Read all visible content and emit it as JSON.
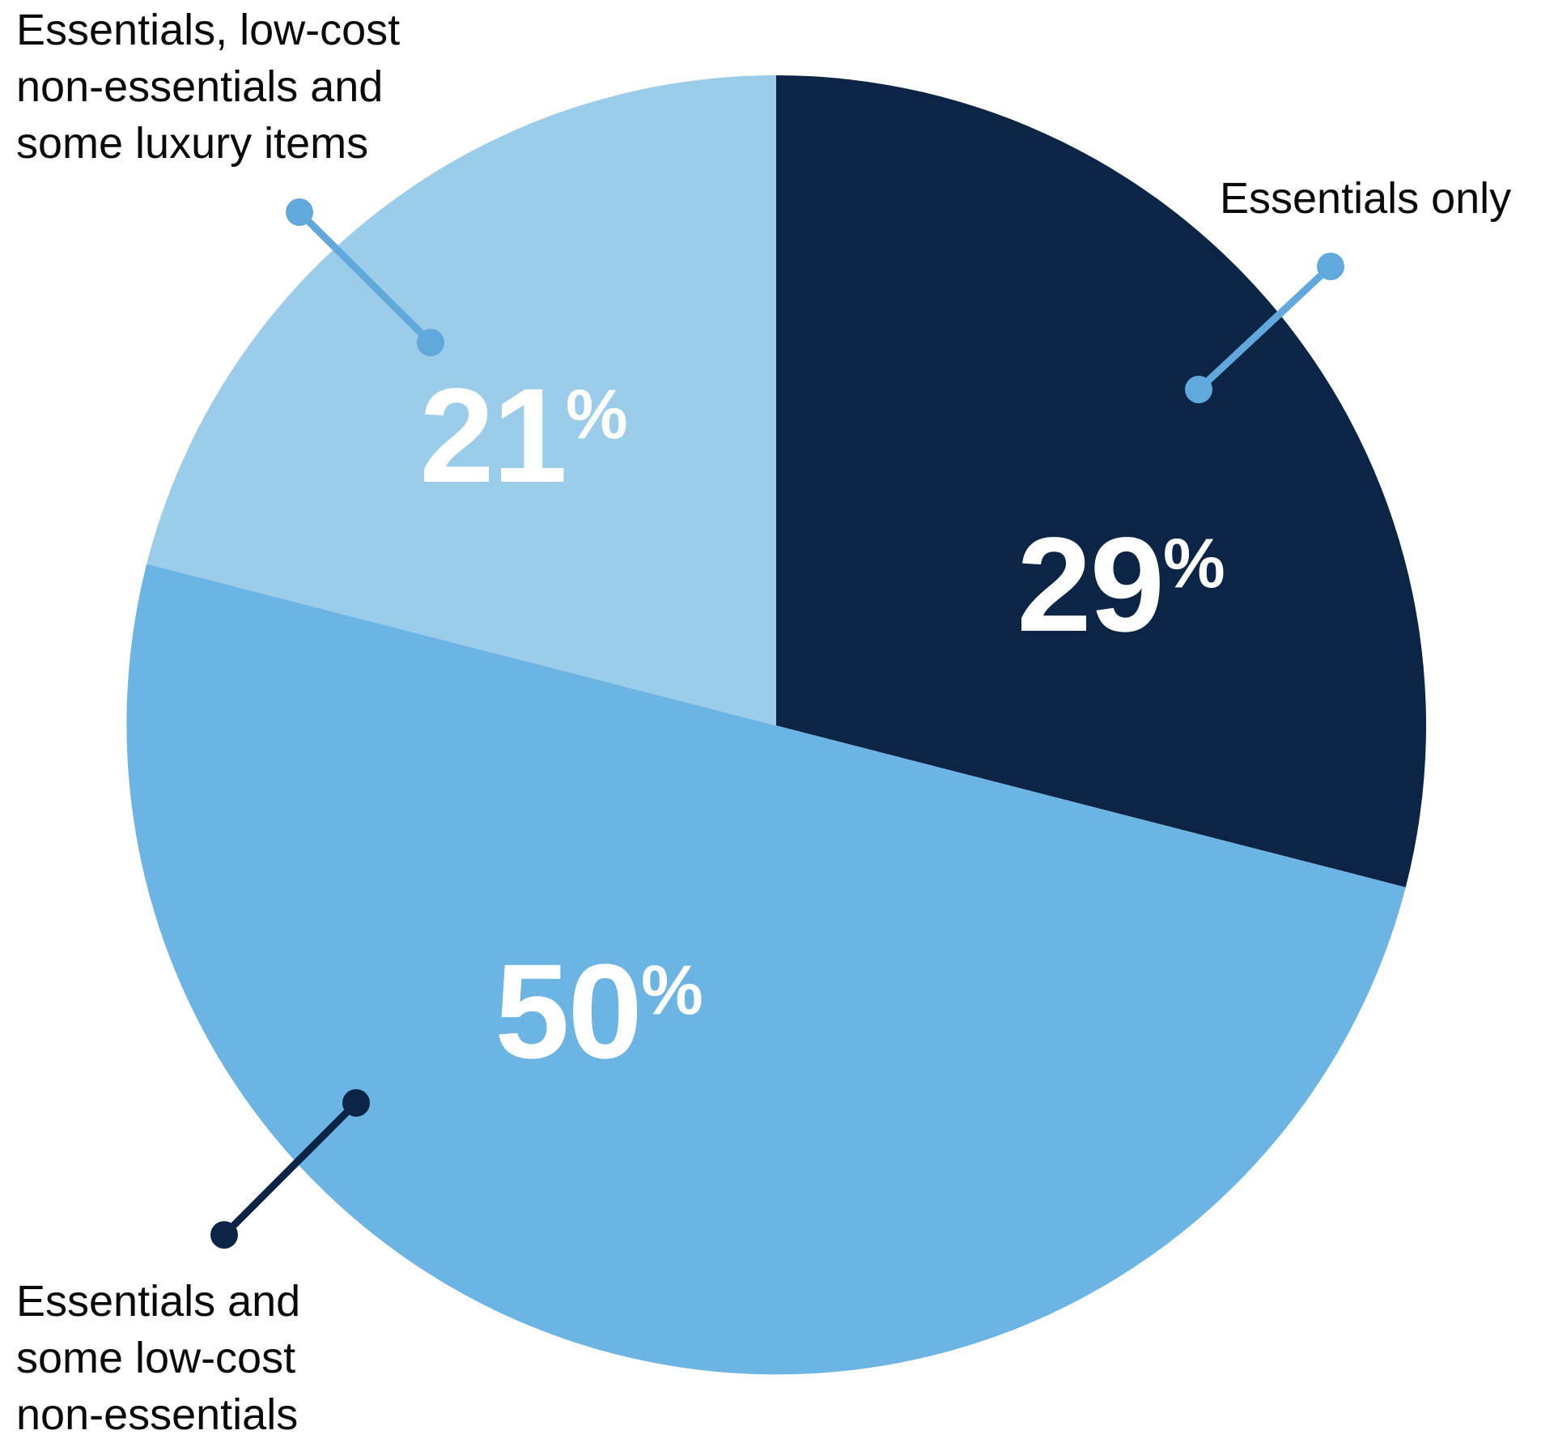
{
  "theme": {
    "background": "#ffffff",
    "text_color": "#0a0a0a",
    "value_label_color": "#ffffff"
  },
  "chart_data": {
    "type": "pie",
    "title": "",
    "categories": [
      "Essentials only",
      "Essentials and some low-cost non-essentials",
      "Essentials, low-cost non-essentials and some luxury items"
    ],
    "values": [
      29,
      50,
      21
    ],
    "unit": "%",
    "colors": [
      "#0C2446",
      "#6CB4E4",
      "#9BCDEB"
    ],
    "slice_ids": [
      "essentials-only",
      "essentials-and-some-low-cost-non-essentials",
      "essentials-low-cost-non-essentials-and-some-luxury-items"
    ],
    "start_angle_deg": 0,
    "direction": "clockwise",
    "value_labels": [
      "29%",
      "50%",
      "21%"
    ],
    "legend_position": "callout-labels-around-pie",
    "grid": false
  },
  "value_labels": [
    {
      "number": "29",
      "symbol": "%"
    },
    {
      "number": "50",
      "symbol": "%"
    },
    {
      "number": "21",
      "symbol": "%"
    }
  ],
  "callouts": [
    {
      "id": "essentials-only",
      "label": "Essentials only",
      "lines": [
        "Essentials only"
      ],
      "line_color": "#61A9DD"
    },
    {
      "id": "essentials-and-some-low-cost-non-essentials",
      "label": "Essentials and some low-cost non-essentials",
      "lines": [
        "Essentials and",
        "some low-cost",
        "non-essentials"
      ],
      "line_color": "#0C2446"
    },
    {
      "id": "essentials-low-cost-non-essentials-and-some-luxury-items",
      "label": "Essentials, low-cost non-essentials and some luxury items",
      "lines": [
        "Essentials, low-cost",
        "non-essentials and",
        "some luxury items"
      ],
      "line_color": "#61A9DD"
    }
  ]
}
